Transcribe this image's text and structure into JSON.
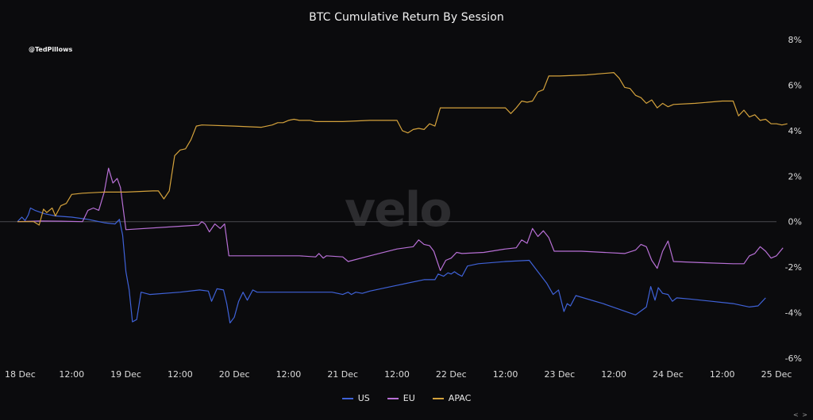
{
  "watermark": "velo",
  "handle": "@TedPillows",
  "nav": "< >",
  "colors": {
    "US": "#3f62d8",
    "EU": "#b870d6",
    "APAC": "#d4a23c",
    "zero_line": "#4a4a4e",
    "axis_text": "#dcdcdc"
  },
  "chart_data": {
    "type": "line",
    "title": "BTC Cumulative Return By Session",
    "xlabel": "",
    "ylabel": "",
    "x_unit": "Dec 2024, day + hour",
    "xlim": [
      18,
      25
    ],
    "ylim": [
      -6,
      8
    ],
    "y_axis_position": "right",
    "y_ticks": [
      -6,
      -4,
      -2,
      0,
      2,
      4,
      6,
      8
    ],
    "y_tick_labels": [
      "-6%",
      "-4%",
      "-2%",
      "0%",
      "2%",
      "4%",
      "6%",
      "8%"
    ],
    "x_ticks": [
      18,
      18.5,
      19,
      19.5,
      20,
      20.5,
      21,
      21.5,
      22,
      22.5,
      23,
      23.5,
      24,
      24.5,
      25
    ],
    "x_tick_labels": [
      "18 Dec",
      "12:00",
      "19 Dec",
      "12:00",
      "20 Dec",
      "12:00",
      "21 Dec",
      "12:00",
      "22 Dec",
      "12:00",
      "23 Dec",
      "12:00",
      "24 Dec",
      "12:00",
      "25 Dec"
    ],
    "grid": false,
    "legend_position": "bottom-center",
    "series": [
      {
        "name": "US",
        "points": [
          [
            18.0,
            0.0
          ],
          [
            18.04,
            0.2
          ],
          [
            18.07,
            0.05
          ],
          [
            18.1,
            0.3
          ],
          [
            18.12,
            0.6
          ],
          [
            18.16,
            0.5
          ],
          [
            18.25,
            0.35
          ],
          [
            18.35,
            0.25
          ],
          [
            18.5,
            0.2
          ],
          [
            18.65,
            0.1
          ],
          [
            18.8,
            -0.05
          ],
          [
            18.9,
            -0.1
          ],
          [
            18.94,
            0.1
          ],
          [
            18.97,
            -0.6
          ],
          [
            19.0,
            -2.2
          ],
          [
            19.03,
            -3.0
          ],
          [
            19.06,
            -4.4
          ],
          [
            19.1,
            -4.3
          ],
          [
            19.14,
            -3.1
          ],
          [
            19.22,
            -3.2
          ],
          [
            19.5,
            -3.1
          ],
          [
            19.68,
            -3.0
          ],
          [
            19.76,
            -3.05
          ],
          [
            19.79,
            -3.5
          ],
          [
            19.84,
            -2.95
          ],
          [
            19.9,
            -3.0
          ],
          [
            19.93,
            -3.6
          ],
          [
            19.96,
            -4.45
          ],
          [
            20.0,
            -4.2
          ],
          [
            20.04,
            -3.5
          ],
          [
            20.08,
            -3.1
          ],
          [
            20.12,
            -3.45
          ],
          [
            20.17,
            -3.0
          ],
          [
            20.21,
            -3.1
          ],
          [
            20.5,
            -3.1
          ],
          [
            20.9,
            -3.1
          ],
          [
            21.0,
            -3.2
          ],
          [
            21.05,
            -3.1
          ],
          [
            21.08,
            -3.2
          ],
          [
            21.12,
            -3.1
          ],
          [
            21.18,
            -3.15
          ],
          [
            21.25,
            -3.05
          ],
          [
            21.5,
            -2.8
          ],
          [
            21.75,
            -2.55
          ],
          [
            21.85,
            -2.55
          ],
          [
            21.88,
            -2.3
          ],
          [
            21.93,
            -2.4
          ],
          [
            21.97,
            -2.25
          ],
          [
            22.0,
            -2.3
          ],
          [
            22.03,
            -2.2
          ],
          [
            22.06,
            -2.3
          ],
          [
            22.1,
            -2.4
          ],
          [
            22.15,
            -1.95
          ],
          [
            22.25,
            -1.85
          ],
          [
            22.5,
            -1.75
          ],
          [
            22.72,
            -1.7
          ],
          [
            22.8,
            -2.2
          ],
          [
            22.88,
            -2.7
          ],
          [
            22.94,
            -3.2
          ],
          [
            22.99,
            -3.0
          ],
          [
            23.04,
            -3.95
          ],
          [
            23.07,
            -3.6
          ],
          [
            23.1,
            -3.7
          ],
          [
            23.15,
            -3.25
          ],
          [
            23.4,
            -3.6
          ],
          [
            23.7,
            -4.1
          ],
          [
            23.8,
            -3.75
          ],
          [
            23.84,
            -2.85
          ],
          [
            23.88,
            -3.45
          ],
          [
            23.91,
            -2.9
          ],
          [
            23.95,
            -3.15
          ],
          [
            24.0,
            -3.2
          ],
          [
            24.04,
            -3.5
          ],
          [
            24.08,
            -3.35
          ],
          [
            24.2,
            -3.4
          ],
          [
            24.4,
            -3.5
          ],
          [
            24.6,
            -3.6
          ],
          [
            24.75,
            -3.75
          ],
          [
            24.83,
            -3.7
          ],
          [
            24.9,
            -3.35
          ]
        ]
      },
      {
        "name": "EU",
        "points": [
          [
            18.0,
            0.0
          ],
          [
            18.2,
            0.03
          ],
          [
            18.4,
            0.02
          ],
          [
            18.6,
            0.0
          ],
          [
            18.65,
            0.5
          ],
          [
            18.7,
            0.6
          ],
          [
            18.75,
            0.5
          ],
          [
            18.8,
            1.3
          ],
          [
            18.84,
            2.35
          ],
          [
            18.88,
            1.7
          ],
          [
            18.92,
            1.9
          ],
          [
            18.95,
            1.5
          ],
          [
            19.0,
            -0.35
          ],
          [
            19.5,
            -0.2
          ],
          [
            19.67,
            -0.15
          ],
          [
            19.7,
            0.0
          ],
          [
            19.73,
            -0.1
          ],
          [
            19.77,
            -0.45
          ],
          [
            19.82,
            -0.1
          ],
          [
            19.87,
            -0.3
          ],
          [
            19.91,
            -0.1
          ],
          [
            19.95,
            -1.5
          ],
          [
            20.0,
            -1.5
          ],
          [
            20.4,
            -1.5
          ],
          [
            20.6,
            -1.5
          ],
          [
            20.75,
            -1.55
          ],
          [
            20.78,
            -1.4
          ],
          [
            20.82,
            -1.6
          ],
          [
            20.85,
            -1.5
          ],
          [
            21.0,
            -1.55
          ],
          [
            21.05,
            -1.75
          ],
          [
            21.25,
            -1.5
          ],
          [
            21.5,
            -1.2
          ],
          [
            21.65,
            -1.1
          ],
          [
            21.7,
            -0.8
          ],
          [
            21.75,
            -1.0
          ],
          [
            21.8,
            -1.05
          ],
          [
            21.84,
            -1.3
          ],
          [
            21.9,
            -2.15
          ],
          [
            21.95,
            -1.7
          ],
          [
            22.0,
            -1.6
          ],
          [
            22.05,
            -1.35
          ],
          [
            22.1,
            -1.4
          ],
          [
            22.3,
            -1.35
          ],
          [
            22.5,
            -1.2
          ],
          [
            22.6,
            -1.15
          ],
          [
            22.65,
            -0.8
          ],
          [
            22.7,
            -0.95
          ],
          [
            22.75,
            -0.3
          ],
          [
            22.8,
            -0.65
          ],
          [
            22.85,
            -0.4
          ],
          [
            22.9,
            -0.7
          ],
          [
            22.95,
            -1.3
          ],
          [
            23.2,
            -1.3
          ],
          [
            23.6,
            -1.4
          ],
          [
            23.7,
            -1.25
          ],
          [
            23.75,
            -1.0
          ],
          [
            23.8,
            -1.1
          ],
          [
            23.85,
            -1.7
          ],
          [
            23.9,
            -2.05
          ],
          [
            23.95,
            -1.3
          ],
          [
            24.0,
            -0.85
          ],
          [
            24.05,
            -1.75
          ],
          [
            24.3,
            -1.8
          ],
          [
            24.6,
            -1.85
          ],
          [
            24.7,
            -1.85
          ],
          [
            24.75,
            -1.5
          ],
          [
            24.8,
            -1.4
          ],
          [
            24.85,
            -1.1
          ],
          [
            24.9,
            -1.3
          ],
          [
            24.95,
            -1.6
          ],
          [
            25.0,
            -1.5
          ],
          [
            25.06,
            -1.15
          ]
        ]
      },
      {
        "name": "APAC",
        "points": [
          [
            18.0,
            0.0
          ],
          [
            18.1,
            0.0
          ],
          [
            18.15,
            0.0
          ],
          [
            18.2,
            -0.15
          ],
          [
            18.24,
            0.55
          ],
          [
            18.27,
            0.4
          ],
          [
            18.32,
            0.6
          ],
          [
            18.35,
            0.25
          ],
          [
            18.4,
            0.7
          ],
          [
            18.45,
            0.8
          ],
          [
            18.5,
            1.2
          ],
          [
            18.6,
            1.25
          ],
          [
            18.8,
            1.3
          ],
          [
            19.0,
            1.3
          ],
          [
            19.25,
            1.35
          ],
          [
            19.3,
            1.35
          ],
          [
            19.35,
            1.0
          ],
          [
            19.4,
            1.35
          ],
          [
            19.45,
            2.9
          ],
          [
            19.5,
            3.15
          ],
          [
            19.55,
            3.2
          ],
          [
            19.6,
            3.6
          ],
          [
            19.65,
            4.2
          ],
          [
            19.7,
            4.25
          ],
          [
            20.0,
            4.2
          ],
          [
            20.25,
            4.15
          ],
          [
            20.35,
            4.25
          ],
          [
            20.4,
            4.35
          ],
          [
            20.45,
            4.35
          ],
          [
            20.5,
            4.45
          ],
          [
            20.55,
            4.5
          ],
          [
            20.6,
            4.45
          ],
          [
            20.65,
            4.45
          ],
          [
            20.7,
            4.45
          ],
          [
            20.75,
            4.4
          ],
          [
            21.0,
            4.4
          ],
          [
            21.25,
            4.45
          ],
          [
            21.5,
            4.45
          ],
          [
            21.55,
            4.0
          ],
          [
            21.6,
            3.9
          ],
          [
            21.65,
            4.05
          ],
          [
            21.7,
            4.1
          ],
          [
            21.75,
            4.05
          ],
          [
            21.8,
            4.3
          ],
          [
            21.85,
            4.2
          ],
          [
            21.9,
            5.0
          ],
          [
            22.0,
            5.0
          ],
          [
            22.25,
            5.0
          ],
          [
            22.5,
            5.0
          ],
          [
            22.55,
            4.75
          ],
          [
            22.6,
            5.0
          ],
          [
            22.65,
            5.3
          ],
          [
            22.7,
            5.25
          ],
          [
            22.75,
            5.3
          ],
          [
            22.8,
            5.7
          ],
          [
            22.85,
            5.8
          ],
          [
            22.9,
            6.4
          ],
          [
            23.0,
            6.4
          ],
          [
            23.25,
            6.45
          ],
          [
            23.5,
            6.55
          ],
          [
            23.55,
            6.3
          ],
          [
            23.6,
            5.9
          ],
          [
            23.65,
            5.85
          ],
          [
            23.7,
            5.55
          ],
          [
            23.75,
            5.45
          ],
          [
            23.8,
            5.2
          ],
          [
            23.85,
            5.35
          ],
          [
            23.9,
            5.0
          ],
          [
            23.95,
            5.2
          ],
          [
            24.0,
            5.05
          ],
          [
            24.05,
            5.15
          ],
          [
            24.25,
            5.2
          ],
          [
            24.5,
            5.3
          ],
          [
            24.6,
            5.3
          ],
          [
            24.65,
            4.65
          ],
          [
            24.7,
            4.9
          ],
          [
            24.75,
            4.6
          ],
          [
            24.8,
            4.7
          ],
          [
            24.85,
            4.45
          ],
          [
            24.9,
            4.5
          ],
          [
            24.95,
            4.3
          ],
          [
            25.0,
            4.3
          ],
          [
            25.05,
            4.25
          ],
          [
            25.1,
            4.3
          ]
        ]
      }
    ]
  }
}
